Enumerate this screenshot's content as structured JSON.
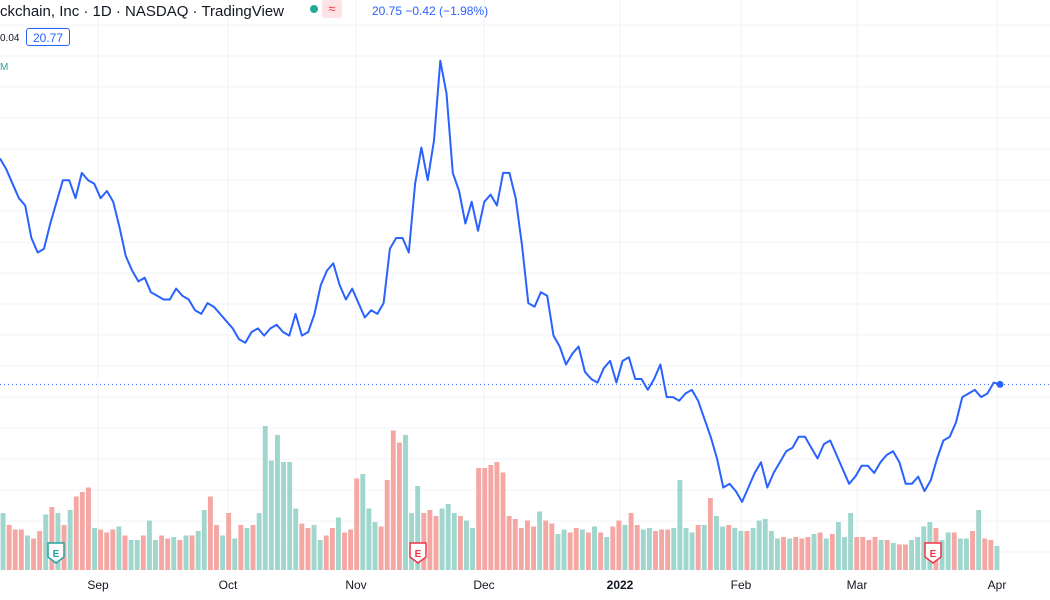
{
  "header": {
    "title": "ckchain, Inc · 1D · NASDAQ · TradingView",
    "price_change": "20.75  −0.42 (−1.98%)",
    "left_value": "0.04",
    "price_box": "20.77",
    "volume_label": "M",
    "wave_icon": "≈"
  },
  "colors": {
    "line": "#2962ff",
    "volume_up": "#9fd6cd",
    "volume_down": "#f4a7a3",
    "earnings_green": "#26a69a",
    "earnings_red": "#f23645"
  },
  "chart_data": {
    "type": "line",
    "x_tick_labels": [
      "Sep",
      "Oct",
      "Nov",
      "Dec",
      "2022",
      "Feb",
      "Mar",
      "Apr"
    ],
    "series": [
      {
        "values": [
          27.0,
          26.7,
          26.3,
          25.9,
          25.7,
          24.8,
          24.4,
          24.5,
          25.2,
          25.8,
          26.4,
          26.4,
          25.9,
          26.6,
          26.4,
          26.3,
          25.9,
          26.1,
          25.8,
          25.1,
          24.3,
          23.9,
          23.6,
          23.7,
          23.3,
          23.2,
          23.1,
          23.1,
          23.4,
          23.2,
          23.1,
          22.8,
          22.7,
          23.0,
          22.9,
          22.7,
          22.5,
          22.3,
          22.0,
          21.9,
          22.2,
          22.3,
          22.1,
          22.3,
          22.4,
          22.2,
          22.1,
          22.7,
          22.1,
          22.2,
          22.7,
          23.5,
          23.9,
          24.1,
          23.5,
          23.1,
          23.4,
          23.0,
          22.6,
          22.8,
          22.7,
          23.0,
          24.5,
          24.8,
          24.8,
          24.4,
          26.3,
          27.3,
          26.4,
          27.5,
          29.7,
          28.8,
          26.6,
          26.1,
          25.2,
          25.8,
          25.0,
          25.8,
          26.0,
          25.7,
          26.6,
          26.6,
          25.9,
          24.6,
          23.0,
          22.9,
          23.3,
          23.2,
          22.1,
          21.8,
          21.3,
          21.6,
          21.8,
          21.1,
          20.9,
          20.8,
          21.2,
          21.4,
          20.8,
          21.4,
          21.5,
          20.9,
          20.9,
          20.6,
          20.9,
          21.3,
          20.4,
          20.4,
          20.3,
          20.5,
          20.6,
          20.3,
          19.8,
          19.3,
          18.7,
          17.9,
          18.0,
          17.8,
          17.5,
          17.9,
          18.3,
          18.6,
          17.9,
          18.3,
          18.6,
          18.9,
          19.0,
          19.3,
          19.3,
          19.0,
          18.7,
          19.1,
          19.2,
          18.8,
          18.4,
          18.0,
          18.2,
          18.5,
          18.5,
          18.3,
          18.6,
          18.8,
          18.9,
          18.6,
          18.0,
          18.0,
          18.2,
          17.8,
          18.1,
          18.7,
          19.2,
          19.3,
          19.7,
          20.4,
          20.5,
          20.6,
          20.4,
          20.5,
          20.8,
          20.75
        ]
      }
    ],
    "volume": [
      {
        "v": 0.38,
        "up": true
      },
      {
        "v": 0.3,
        "up": false
      },
      {
        "v": 0.27,
        "up": false
      },
      {
        "v": 0.27,
        "up": false
      },
      {
        "v": 0.23,
        "up": true
      },
      {
        "v": 0.21,
        "up": false
      },
      {
        "v": 0.26,
        "up": false
      },
      {
        "v": 0.37,
        "up": true
      },
      {
        "v": 0.42,
        "up": false
      },
      {
        "v": 0.38,
        "up": true
      },
      {
        "v": 0.3,
        "up": false
      },
      {
        "v": 0.4,
        "up": true
      },
      {
        "v": 0.49,
        "up": false
      },
      {
        "v": 0.52,
        "up": false
      },
      {
        "v": 0.55,
        "up": false
      },
      {
        "v": 0.28,
        "up": true
      },
      {
        "v": 0.27,
        "up": false
      },
      {
        "v": 0.25,
        "up": false
      },
      {
        "v": 0.27,
        "up": false
      },
      {
        "v": 0.29,
        "up": true
      },
      {
        "v": 0.23,
        "up": false
      },
      {
        "v": 0.2,
        "up": true
      },
      {
        "v": 0.2,
        "up": true
      },
      {
        "v": 0.23,
        "up": false
      },
      {
        "v": 0.33,
        "up": true
      },
      {
        "v": 0.2,
        "up": true
      },
      {
        "v": 0.23,
        "up": false
      },
      {
        "v": 0.21,
        "up": false
      },
      {
        "v": 0.22,
        "up": true
      },
      {
        "v": 0.2,
        "up": false
      },
      {
        "v": 0.23,
        "up": true
      },
      {
        "v": 0.23,
        "up": false
      },
      {
        "v": 0.26,
        "up": true
      },
      {
        "v": 0.4,
        "up": true
      },
      {
        "v": 0.49,
        "up": false
      },
      {
        "v": 0.3,
        "up": false
      },
      {
        "v": 0.23,
        "up": true
      },
      {
        "v": 0.38,
        "up": false
      },
      {
        "v": 0.21,
        "up": true
      },
      {
        "v": 0.3,
        "up": false
      },
      {
        "v": 0.28,
        "up": true
      },
      {
        "v": 0.3,
        "up": false
      },
      {
        "v": 0.38,
        "up": true
      },
      {
        "v": 0.96,
        "up": true
      },
      {
        "v": 0.73,
        "up": true
      },
      {
        "v": 0.9,
        "up": true
      },
      {
        "v": 0.72,
        "up": true
      },
      {
        "v": 0.72,
        "up": true
      },
      {
        "v": 0.41,
        "up": true
      },
      {
        "v": 0.31,
        "up": false
      },
      {
        "v": 0.28,
        "up": false
      },
      {
        "v": 0.3,
        "up": true
      },
      {
        "v": 0.2,
        "up": true
      },
      {
        "v": 0.23,
        "up": false
      },
      {
        "v": 0.28,
        "up": false
      },
      {
        "v": 0.35,
        "up": true
      },
      {
        "v": 0.25,
        "up": false
      },
      {
        "v": 0.27,
        "up": false
      },
      {
        "v": 0.61,
        "up": false
      },
      {
        "v": 0.64,
        "up": true
      },
      {
        "v": 0.41,
        "up": true
      },
      {
        "v": 0.32,
        "up": true
      },
      {
        "v": 0.29,
        "up": false
      },
      {
        "v": 0.6,
        "up": false
      },
      {
        "v": 0.93,
        "up": false
      },
      {
        "v": 0.85,
        "up": false
      },
      {
        "v": 0.9,
        "up": true
      },
      {
        "v": 0.38,
        "up": true
      },
      {
        "v": 0.56,
        "up": true
      },
      {
        "v": 0.38,
        "up": false
      },
      {
        "v": 0.4,
        "up": false
      },
      {
        "v": 0.36,
        "up": false
      },
      {
        "v": 0.41,
        "up": true
      },
      {
        "v": 0.44,
        "up": true
      },
      {
        "v": 0.38,
        "up": true
      },
      {
        "v": 0.36,
        "up": false
      },
      {
        "v": 0.33,
        "up": true
      },
      {
        "v": 0.28,
        "up": true
      },
      {
        "v": 0.68,
        "up": false
      },
      {
        "v": 0.68,
        "up": false
      },
      {
        "v": 0.7,
        "up": false
      },
      {
        "v": 0.72,
        "up": false
      },
      {
        "v": 0.65,
        "up": false
      },
      {
        "v": 0.36,
        "up": false
      },
      {
        "v": 0.34,
        "up": false
      },
      {
        "v": 0.28,
        "up": false
      },
      {
        "v": 0.33,
        "up": false
      },
      {
        "v": 0.29,
        "up": false
      },
      {
        "v": 0.39,
        "up": true
      },
      {
        "v": 0.33,
        "up": false
      },
      {
        "v": 0.31,
        "up": false
      },
      {
        "v": 0.24,
        "up": true
      },
      {
        "v": 0.27,
        "up": true
      },
      {
        "v": 0.25,
        "up": false
      },
      {
        "v": 0.28,
        "up": false
      },
      {
        "v": 0.27,
        "up": true
      },
      {
        "v": 0.25,
        "up": false
      },
      {
        "v": 0.29,
        "up": true
      },
      {
        "v": 0.25,
        "up": false
      },
      {
        "v": 0.22,
        "up": true
      },
      {
        "v": 0.29,
        "up": false
      },
      {
        "v": 0.33,
        "up": false
      },
      {
        "v": 0.3,
        "up": true
      },
      {
        "v": 0.38,
        "up": false
      },
      {
        "v": 0.3,
        "up": false
      },
      {
        "v": 0.27,
        "up": true
      },
      {
        "v": 0.28,
        "up": true
      },
      {
        "v": 0.26,
        "up": false
      },
      {
        "v": 0.27,
        "up": false
      },
      {
        "v": 0.27,
        "up": false
      },
      {
        "v": 0.28,
        "up": true
      },
      {
        "v": 0.6,
        "up": true
      },
      {
        "v": 0.28,
        "up": true
      },
      {
        "v": 0.25,
        "up": true
      },
      {
        "v": 0.3,
        "up": false
      },
      {
        "v": 0.3,
        "up": true
      },
      {
        "v": 0.48,
        "up": false
      },
      {
        "v": 0.36,
        "up": true
      },
      {
        "v": 0.29,
        "up": true
      },
      {
        "v": 0.3,
        "up": false
      },
      {
        "v": 0.28,
        "up": true
      },
      {
        "v": 0.26,
        "up": true
      },
      {
        "v": 0.26,
        "up": false
      },
      {
        "v": 0.28,
        "up": true
      },
      {
        "v": 0.33,
        "up": true
      },
      {
        "v": 0.34,
        "up": true
      },
      {
        "v": 0.26,
        "up": true
      },
      {
        "v": 0.21,
        "up": true
      },
      {
        "v": 0.22,
        "up": false
      },
      {
        "v": 0.21,
        "up": true
      },
      {
        "v": 0.22,
        "up": false
      },
      {
        "v": 0.21,
        "up": false
      },
      {
        "v": 0.22,
        "up": false
      },
      {
        "v": 0.24,
        "up": true
      },
      {
        "v": 0.25,
        "up": false
      },
      {
        "v": 0.21,
        "up": true
      },
      {
        "v": 0.24,
        "up": false
      },
      {
        "v": 0.32,
        "up": true
      },
      {
        "v": 0.22,
        "up": true
      },
      {
        "v": 0.38,
        "up": true
      },
      {
        "v": 0.22,
        "up": false
      },
      {
        "v": 0.22,
        "up": false
      },
      {
        "v": 0.2,
        "up": false
      },
      {
        "v": 0.22,
        "up": false
      },
      {
        "v": 0.2,
        "up": true
      },
      {
        "v": 0.2,
        "up": false
      },
      {
        "v": 0.18,
        "up": true
      },
      {
        "v": 0.17,
        "up": false
      },
      {
        "v": 0.17,
        "up": false
      },
      {
        "v": 0.2,
        "up": true
      },
      {
        "v": 0.22,
        "up": true
      },
      {
        "v": 0.29,
        "up": true
      },
      {
        "v": 0.32,
        "up": true
      },
      {
        "v": 0.28,
        "up": false
      },
      {
        "v": 0.2,
        "up": true
      },
      {
        "v": 0.25,
        "up": true
      },
      {
        "v": 0.25,
        "up": false
      },
      {
        "v": 0.21,
        "up": true
      },
      {
        "v": 0.21,
        "up": true
      },
      {
        "v": 0.26,
        "up": false
      },
      {
        "v": 0.4,
        "up": true
      },
      {
        "v": 0.21,
        "up": false
      },
      {
        "v": 0.2,
        "up": false
      },
      {
        "v": 0.16,
        "up": true
      }
    ],
    "earnings_markers": [
      {
        "label": "E",
        "color": "green"
      },
      {
        "label": "E",
        "color": "red"
      },
      {
        "label": "E",
        "color": "red"
      }
    ]
  }
}
